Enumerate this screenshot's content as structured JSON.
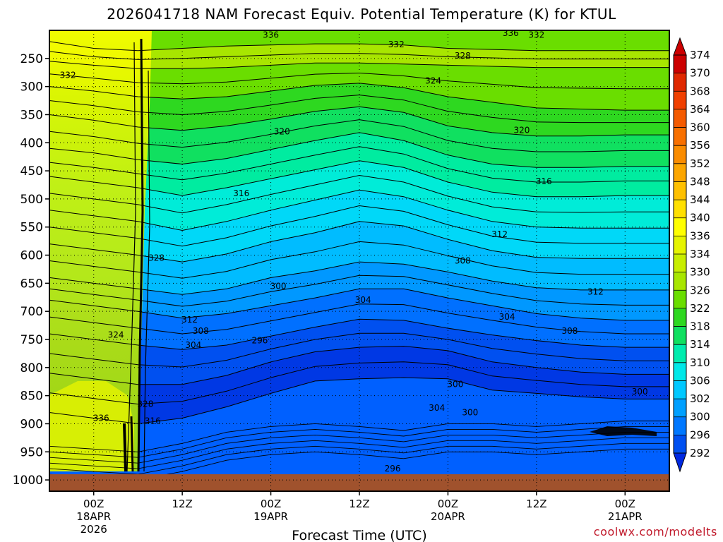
{
  "chart_data": {
    "type": "heatmap",
    "title": "2026041718 NAM Forecast Equiv. Potential Temperature (K) for KTUL",
    "xlabel": "Forecast Time (UTC)",
    "ylabel": "",
    "y_ticks": [
      "250",
      "300",
      "350",
      "400",
      "450",
      "500",
      "550",
      "600",
      "650",
      "700",
      "750",
      "800",
      "850",
      "900",
      "950",
      "1000"
    ],
    "y_values": [
      250,
      300,
      350,
      400,
      450,
      500,
      550,
      600,
      650,
      700,
      750,
      800,
      850,
      900,
      950,
      1000
    ],
    "ylim": [
      200,
      1020
    ],
    "x_ticks": [
      {
        "time": "00Z",
        "date": "18APR",
        "year": "2026",
        "hour": 6
      },
      {
        "time": "12Z",
        "date": "",
        "year": "",
        "hour": 18
      },
      {
        "time": "00Z",
        "date": "19APR",
        "year": "",
        "hour": 30
      },
      {
        "time": "12Z",
        "date": "",
        "year": "",
        "hour": 42
      },
      {
        "time": "00Z",
        "date": "20APR",
        "year": "",
        "hour": 54
      },
      {
        "time": "12Z",
        "date": "",
        "year": "",
        "hour": 66
      },
      {
        "time": "00Z",
        "date": "21APR",
        "year": "",
        "hour": 78
      }
    ],
    "xlim": [
      0,
      84
    ],
    "colorbar": {
      "labels": [
        "374",
        "370",
        "368",
        "364",
        "360",
        "356",
        "352",
        "348",
        "344",
        "340",
        "336",
        "334",
        "330",
        "326",
        "322",
        "318",
        "314",
        "310",
        "306",
        "302",
        "300",
        "296",
        "292"
      ],
      "colors": [
        "#cc0000",
        "#e02800",
        "#f04000",
        "#f45a00",
        "#f87000",
        "#fa8c00",
        "#fca600",
        "#fec000",
        "#ffe000",
        "#ffff00",
        "#e6f400",
        "#c8ee00",
        "#a8e600",
        "#6ade00",
        "#2ed820",
        "#10e060",
        "#00ecae",
        "#00e8e8",
        "#00c8ff",
        "#00a0ff",
        "#0078ff",
        "#0050f0",
        "#0028e0"
      ]
    },
    "contour_labels": [
      {
        "text": "336",
        "hour": 30,
        "p": 208
      },
      {
        "text": "336",
        "hour": 62.5,
        "p": 205
      },
      {
        "text": "332",
        "hour": 66,
        "p": 208
      },
      {
        "text": "332",
        "hour": 47,
        "p": 225
      },
      {
        "text": "328",
        "hour": 56,
        "p": 245
      },
      {
        "text": "324",
        "hour": 52,
        "p": 290
      },
      {
        "text": "332",
        "hour": 2.5,
        "p": 280
      },
      {
        "text": "320",
        "hour": 31.5,
        "p": 380
      },
      {
        "text": "320",
        "hour": 64,
        "p": 378
      },
      {
        "text": "316",
        "hour": 26,
        "p": 490
      },
      {
        "text": "316",
        "hour": 67,
        "p": 469
      },
      {
        "text": "312",
        "hour": 61,
        "p": 563
      },
      {
        "text": "312",
        "hour": 74,
        "p": 665
      },
      {
        "text": "308",
        "hour": 56,
        "p": 610
      },
      {
        "text": "308",
        "hour": 70.5,
        "p": 735
      },
      {
        "text": "304",
        "hour": 42.5,
        "p": 680
      },
      {
        "text": "304",
        "hour": 62,
        "p": 710
      },
      {
        "text": "300",
        "hour": 31,
        "p": 655
      },
      {
        "text": "296",
        "hour": 28.5,
        "p": 752
      },
      {
        "text": "328",
        "hour": 14.5,
        "p": 605
      },
      {
        "text": "324",
        "hour": 9,
        "p": 742
      },
      {
        "text": "336",
        "hour": 7,
        "p": 890
      },
      {
        "text": "328",
        "hour": 13,
        "p": 865
      },
      {
        "text": "316",
        "hour": 14,
        "p": 895
      },
      {
        "text": "312",
        "hour": 19,
        "p": 715
      },
      {
        "text": "308",
        "hour": 20.5,
        "p": 735
      },
      {
        "text": "304",
        "hour": 19.5,
        "p": 760
      },
      {
        "text": "304",
        "hour": 52.5,
        "p": 872
      },
      {
        "text": "300",
        "hour": 55,
        "p": 830
      },
      {
        "text": "300",
        "hour": 57,
        "p": 880
      },
      {
        "text": "300",
        "hour": 80,
        "p": 843
      },
      {
        "text": "296",
        "hour": 46.5,
        "p": 980
      }
    ]
  },
  "credit": "coolwx.com/modelts",
  "colors": {
    "ground": "#a0522d",
    "frame": "#000000",
    "credit": "#c0182a"
  }
}
